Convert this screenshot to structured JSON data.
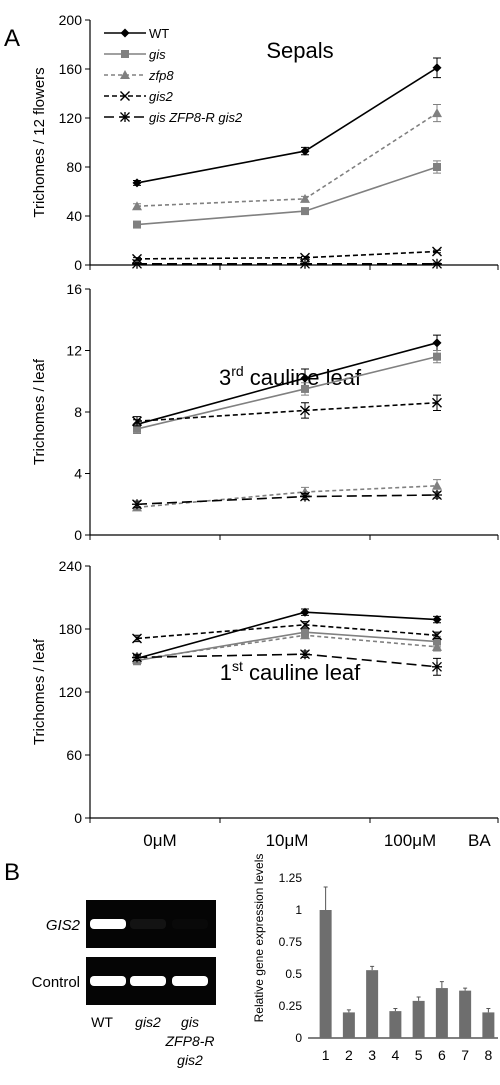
{
  "panel_labels": {
    "a": "A",
    "b": "B"
  },
  "x_axis": {
    "ticks": [
      "0μM",
      "10μM",
      "100μM"
    ],
    "suffix": "BA"
  },
  "legend": [
    {
      "name": "WT",
      "italic": false
    },
    {
      "name": "gis",
      "italic": true
    },
    {
      "name": "zfp8",
      "italic": true
    },
    {
      "name": "gis2",
      "italic": true
    },
    {
      "name": "gis ZFP8-R gis2",
      "italic": true
    }
  ],
  "styles": {
    "WT": {
      "color": "#000000",
      "dash": "",
      "marker": "diamond"
    },
    "gis": {
      "color": "#808080",
      "dash": "",
      "marker": "square"
    },
    "zfp8": {
      "color": "#808080",
      "dash": "4,3",
      "marker": "triangle"
    },
    "gis2": {
      "color": "#000000",
      "dash": "5,3",
      "marker": "x"
    },
    "gis ZFP8-R gis2": {
      "color": "#000000",
      "dash": "10,5",
      "marker": "star"
    },
    "bar_fill": "#6e6e6e",
    "gel_bg": "#050505",
    "gel_band": "#ffffff"
  },
  "chart_data": [
    {
      "type": "line",
      "title": "Sepals",
      "ylabel": "Trichomes / 12 flowers",
      "categories": [
        "0μM",
        "10μM",
        "100μM"
      ],
      "ylim": [
        0,
        200
      ],
      "yticks": [
        0,
        40,
        80,
        120,
        160,
        200
      ],
      "series": [
        {
          "name": "WT",
          "values": [
            67,
            93,
            161
          ],
          "errors": [
            2,
            3,
            8
          ]
        },
        {
          "name": "gis",
          "values": [
            33,
            44,
            80
          ],
          "errors": [
            2,
            2,
            5
          ]
        },
        {
          "name": "zfp8",
          "values": [
            48,
            54,
            124
          ],
          "errors": [
            2,
            2,
            7
          ]
        },
        {
          "name": "gis2",
          "values": [
            5,
            6,
            11
          ],
          "errors": [
            1,
            1,
            1
          ]
        },
        {
          "name": "gis ZFP8-R gis2",
          "values": [
            1,
            1,
            1
          ],
          "errors": [
            0.5,
            0.5,
            0.5
          ]
        }
      ]
    },
    {
      "type": "line",
      "title": "3rd cauline leaf",
      "title_parts": {
        "lead": "3",
        "sup": "rd",
        "rest": " cauline leaf"
      },
      "ylabel": "Trichomes / leaf",
      "categories": [
        "0μM",
        "10μM",
        "100μM"
      ],
      "ylim": [
        0,
        16
      ],
      "yticks": [
        0,
        4,
        8,
        12,
        16
      ],
      "series": [
        {
          "name": "WT",
          "values": [
            7.2,
            10.2,
            12.5
          ],
          "errors": [
            0.3,
            0.6,
            0.5
          ]
        },
        {
          "name": "gis",
          "values": [
            6.9,
            9.5,
            11.6
          ],
          "errors": [
            0.3,
            0.4,
            0.4
          ]
        },
        {
          "name": "zfp8",
          "values": [
            1.8,
            2.8,
            3.2
          ],
          "errors": [
            0.2,
            0.3,
            0.4
          ]
        },
        {
          "name": "gis2",
          "values": [
            7.4,
            8.1,
            8.6
          ],
          "errors": [
            0.3,
            0.5,
            0.5
          ]
        },
        {
          "name": "gis ZFP8-R gis2",
          "values": [
            2.0,
            2.5,
            2.6
          ],
          "errors": [
            0.2,
            0.2,
            0.2
          ]
        }
      ]
    },
    {
      "type": "line",
      "title": "1st cauline leaf",
      "title_parts": {
        "lead": "1",
        "sup": "st",
        "rest": " cauline leaf"
      },
      "ylabel": "Trichomes / leaf",
      "categories": [
        "0μM",
        "10μM",
        "100μM"
      ],
      "ylim": [
        0,
        240
      ],
      "yticks": [
        0,
        60,
        120,
        180,
        240
      ],
      "series": [
        {
          "name": "WT",
          "values": [
            152,
            196,
            189
          ],
          "errors": [
            3,
            3,
            3
          ]
        },
        {
          "name": "gis",
          "values": [
            150,
            177,
            168
          ],
          "errors": [
            4,
            4,
            5
          ]
        },
        {
          "name": "zfp8",
          "values": [
            151,
            174,
            163
          ],
          "errors": [
            3,
            3,
            4
          ]
        },
        {
          "name": "gis2",
          "values": [
            171,
            184,
            174
          ],
          "errors": [
            3,
            3,
            3
          ]
        },
        {
          "name": "gis ZFP8-R gis2",
          "values": [
            153,
            156,
            144
          ],
          "errors": [
            3,
            3,
            8
          ]
        }
      ]
    },
    {
      "type": "bar",
      "ylabel": "Relative gene expression levels",
      "categories": [
        "1",
        "2",
        "3",
        "4",
        "5",
        "6",
        "7",
        "8"
      ],
      "values": [
        1.0,
        0.2,
        0.53,
        0.21,
        0.29,
        0.39,
        0.37,
        0.2
      ],
      "errors": [
        0.18,
        0.02,
        0.03,
        0.02,
        0.03,
        0.05,
        0.02,
        0.03
      ],
      "ylim": [
        0,
        1.25
      ],
      "yticks": [
        0,
        0.25,
        0.5,
        0.75,
        1,
        1.25
      ],
      "yticklabels": [
        "0",
        "0.25",
        "0.5",
        "0.75",
        "1",
        "1.25"
      ]
    }
  ],
  "gel": {
    "rows": [
      {
        "label": "GIS2",
        "italic": true,
        "bands": [
          1.0,
          0.06,
          0.02
        ]
      },
      {
        "label": "Control",
        "italic": false,
        "bands": [
          1.0,
          1.0,
          1.0
        ]
      }
    ],
    "lanes": [
      {
        "lines": [
          "WT"
        ],
        "italic": false
      },
      {
        "lines": [
          "gis2"
        ],
        "italic": true
      },
      {
        "lines": [
          "gis",
          "ZFP8-R",
          "gis2"
        ],
        "italic": true
      }
    ]
  }
}
